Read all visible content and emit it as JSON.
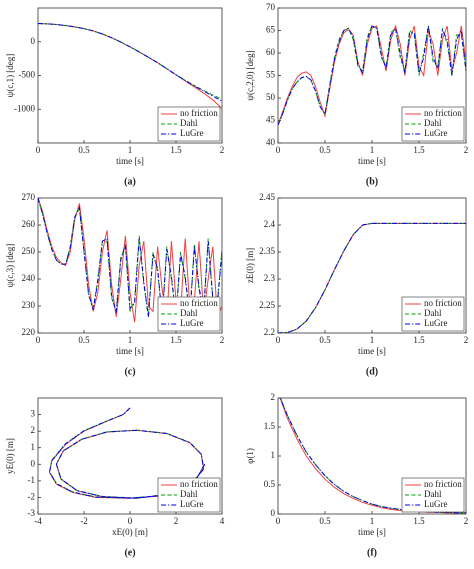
{
  "chart_data": [
    {
      "type": "line",
      "label": "(a)",
      "xlabel": "time [s]",
      "ylabel": "ψ(c,1) [deg]",
      "x": [
        0,
        0.1,
        0.2,
        0.3,
        0.4,
        0.5,
        0.6,
        0.7,
        0.8,
        0.9,
        1,
        1.1,
        1.2,
        1.3,
        1.4,
        1.5,
        1.6,
        1.7,
        1.8,
        1.9,
        2
      ],
      "xlim": [
        0,
        2
      ],
      "xticks": [
        0,
        0.5,
        1,
        1.5,
        2
      ],
      "ylim": [
        -1500,
        500
      ],
      "yticks": [
        -1000,
        -500,
        0
      ],
      "legend": "lower right",
      "series": [
        {
          "name": "no friction",
          "color": "#f04040",
          "dash": "solid",
          "values": [
            270,
            265,
            255,
            240,
            220,
            195,
            160,
            115,
            60,
            -5,
            -75,
            -150,
            -230,
            -310,
            -400,
            -490,
            -580,
            -670,
            -760,
            -860,
            -990
          ]
        },
        {
          "name": "Dahl",
          "color": "#00a000",
          "dash": "dashed",
          "values": [
            270,
            265,
            255,
            240,
            220,
            195,
            160,
            115,
            60,
            -5,
            -75,
            -150,
            -230,
            -310,
            -400,
            -490,
            -570,
            -650,
            -720,
            -790,
            -850
          ]
        },
        {
          "name": "LuGre",
          "color": "#0000ee",
          "dash": "dashdot",
          "values": [
            270,
            265,
            255,
            240,
            220,
            195,
            160,
            115,
            60,
            -5,
            -75,
            -150,
            -230,
            -310,
            -400,
            -490,
            -575,
            -655,
            -730,
            -805,
            -880
          ]
        }
      ]
    },
    {
      "type": "line",
      "label": "(b)",
      "xlabel": "time [s]",
      "ylabel": "ψ(c,2,0) [deg]",
      "x": [
        0,
        0.05,
        0.1,
        0.15,
        0.2,
        0.25,
        0.3,
        0.35,
        0.4,
        0.45,
        0.5,
        0.55,
        0.6,
        0.65,
        0.7,
        0.75,
        0.8,
        0.85,
        0.9,
        0.95,
        1,
        1.05,
        1.1,
        1.15,
        1.2,
        1.25,
        1.3,
        1.35,
        1.4,
        1.45,
        1.5,
        1.55,
        1.6,
        1.65,
        1.7,
        1.75,
        1.8,
        1.85,
        1.9,
        1.95,
        2
      ],
      "xlim": [
        0,
        2
      ],
      "xticks": [
        0,
        0.5,
        1,
        1.5,
        2
      ],
      "ylim": [
        40,
        70
      ],
      "yticks": [
        40,
        45,
        50,
        55,
        60,
        65,
        70
      ],
      "legend": "lower right",
      "series": [
        {
          "name": "no friction",
          "color": "#f04040",
          "dash": "solid",
          "values": [
            44,
            47,
            50,
            52.5,
            54.5,
            55.5,
            55.8,
            55,
            52.5,
            49,
            46,
            52,
            58,
            62,
            64.5,
            65.2,
            64,
            58,
            55,
            62,
            65.5,
            66,
            61,
            56,
            63,
            66,
            62,
            55,
            63,
            66,
            57,
            55,
            65,
            62,
            55,
            63,
            66,
            56,
            60,
            66,
            58
          ]
        },
        {
          "name": "Dahl",
          "color": "#00a000",
          "dash": "dashed",
          "values": [
            44,
            46.5,
            49.5,
            52,
            53.5,
            54.5,
            54.8,
            54,
            51.5,
            48,
            46.5,
            53,
            59,
            63,
            65,
            65.5,
            63,
            57,
            56,
            63.5,
            66,
            65.5,
            59,
            57,
            64.5,
            65.5,
            59,
            56,
            65,
            64,
            55,
            60,
            66,
            58,
            57,
            65.5,
            62,
            55,
            64,
            64,
            56
          ]
        },
        {
          "name": "LuGre",
          "color": "#0000ee",
          "dash": "dashdot",
          "values": [
            44,
            46.5,
            49.5,
            52,
            53.5,
            54.5,
            54.8,
            54,
            51.5,
            48,
            46.5,
            52.5,
            58.5,
            62.5,
            65,
            65.5,
            63.5,
            57.5,
            55.5,
            63,
            66,
            65.5,
            59.5,
            56.5,
            64,
            65.5,
            60,
            55.5,
            64.5,
            64.5,
            55.5,
            59,
            66,
            59,
            56.5,
            65,
            63,
            55,
            63,
            65,
            56
          ]
        }
      ]
    },
    {
      "type": "line",
      "label": "(c)",
      "xlabel": "time [s]",
      "ylabel": "ψ(c,3) [deg]",
      "x": [
        0,
        0.05,
        0.1,
        0.15,
        0.2,
        0.25,
        0.3,
        0.35,
        0.4,
        0.45,
        0.5,
        0.55,
        0.6,
        0.65,
        0.7,
        0.75,
        0.8,
        0.85,
        0.9,
        0.95,
        1,
        1.05,
        1.1,
        1.15,
        1.2,
        1.25,
        1.3,
        1.35,
        1.4,
        1.45,
        1.5,
        1.55,
        1.6,
        1.65,
        1.7,
        1.75,
        1.8,
        1.85,
        1.9,
        1.95,
        2
      ],
      "xlim": [
        0,
        2
      ],
      "xticks": [
        0,
        0.5,
        1,
        1.5,
        2
      ],
      "ylim": [
        220,
        270
      ],
      "yticks": [
        220,
        230,
        240,
        250,
        260,
        270
      ],
      "legend": "lower right",
      "series": [
        {
          "name": "no friction",
          "color": "#f04040",
          "dash": "solid",
          "values": [
            270,
            265,
            258,
            252,
            248,
            246,
            245,
            250,
            262,
            268,
            255,
            238,
            228,
            235,
            250,
            258,
            238,
            226,
            240,
            256,
            235,
            224,
            245,
            254,
            230,
            228,
            252,
            236,
            225,
            254,
            232,
            228,
            255,
            230,
            232,
            254,
            227,
            240,
            252,
            226,
            230
          ]
        },
        {
          "name": "Dahl",
          "color": "#00a000",
          "dash": "dashed",
          "values": [
            270,
            264,
            257,
            251,
            247,
            245.5,
            245.5,
            252,
            263,
            266,
            250,
            234,
            229,
            240,
            254,
            254,
            233,
            228,
            248,
            252,
            228,
            232,
            256,
            238,
            226,
            250,
            243,
            226,
            252,
            240,
            226,
            250,
            240,
            226,
            253,
            236,
            228,
            255,
            232,
            232,
            251
          ]
        },
        {
          "name": "LuGre",
          "color": "#0000ee",
          "dash": "dashdot",
          "values": [
            270,
            264,
            257,
            251,
            247,
            245.5,
            245.5,
            251.5,
            263,
            266.5,
            250.5,
            234.5,
            228.5,
            239,
            254,
            255,
            234,
            227.5,
            247,
            253,
            229,
            231,
            255,
            239,
            226,
            249,
            244,
            225.5,
            251,
            241,
            226.5,
            249,
            241,
            226,
            252,
            237,
            228,
            254,
            233,
            231,
            250
          ]
        }
      ]
    },
    {
      "type": "line",
      "label": "(d)",
      "xlabel": "time [s]",
      "ylabel": "zE(0) [m]",
      "x": [
        0,
        0.1,
        0.2,
        0.3,
        0.4,
        0.5,
        0.6,
        0.7,
        0.8,
        0.9,
        1,
        1.1,
        1.2,
        1.3,
        1.4,
        1.5,
        1.6,
        1.7,
        1.8,
        1.9,
        2
      ],
      "xlim": [
        0,
        2
      ],
      "xticks": [
        0,
        0.5,
        1,
        1.5,
        2
      ],
      "ylim": [
        2.2,
        2.45
      ],
      "yticks": [
        2.2,
        2.25,
        2.3,
        2.35,
        2.4,
        2.45
      ],
      "legend": "lower right",
      "series": [
        {
          "name": "no friction",
          "color": "#f04040",
          "dash": "solid",
          "values": [
            2.2,
            2.201,
            2.207,
            2.222,
            2.247,
            2.28,
            2.317,
            2.352,
            2.382,
            2.4,
            2.403,
            2.403,
            2.403,
            2.403,
            2.403,
            2.403,
            2.403,
            2.403,
            2.403,
            2.403,
            2.403
          ]
        },
        {
          "name": "Dahl",
          "color": "#00a000",
          "dash": "dashed",
          "values": [
            2.2,
            2.201,
            2.207,
            2.222,
            2.247,
            2.28,
            2.317,
            2.352,
            2.382,
            2.4,
            2.403,
            2.403,
            2.403,
            2.403,
            2.403,
            2.403,
            2.403,
            2.403,
            2.403,
            2.403,
            2.403
          ]
        },
        {
          "name": "LuGre",
          "color": "#0000ee",
          "dash": "dashdot",
          "values": [
            2.2,
            2.201,
            2.207,
            2.222,
            2.247,
            2.28,
            2.317,
            2.352,
            2.382,
            2.4,
            2.403,
            2.403,
            2.403,
            2.403,
            2.403,
            2.403,
            2.403,
            2.403,
            2.403,
            2.403,
            2.403
          ]
        }
      ]
    },
    {
      "type": "line",
      "label": "(e)",
      "xlabel": "xE(0) [m]",
      "ylabel": "yE(0) [m]",
      "x": [
        0,
        -0.3,
        -1,
        -2,
        -2.8,
        -3.4,
        -3.5,
        -3.2,
        -2.5,
        -1.5,
        0,
        1.5,
        2.6,
        3.2,
        3.1,
        2.6,
        1.6,
        0.3,
        -1,
        -2.1,
        -2.9,
        -3.2,
        -3,
        -2.3,
        -1.2,
        0.3,
        1.7,
        2.8,
        3.25
      ],
      "xlim": [
        -4,
        4
      ],
      "xticks": [
        -4,
        -2,
        0,
        2,
        4
      ],
      "ylim": [
        -3,
        4
      ],
      "yticks": [
        -3,
        -2,
        -1,
        0,
        1,
        2,
        3
      ],
      "legend": "lower right",
      "series": [
        {
          "name": "no friction",
          "color": "#f04040",
          "dash": "solid",
          "values": [
            3.4,
            3,
            2.6,
            2,
            1.2,
            0.2,
            -0.5,
            -1.2,
            -1.7,
            -2,
            -2.05,
            -1.9,
            -1.3,
            -0.3,
            0.6,
            1.3,
            1.85,
            2.05,
            1.95,
            1.5,
            0.8,
            0,
            -0.9,
            -1.6,
            -1.95,
            -2.05,
            -1.8,
            -1.1,
            0
          ]
        },
        {
          "name": "Dahl",
          "color": "#00a000",
          "dash": "dashed",
          "values": [
            3.4,
            3,
            2.62,
            2.03,
            1.25,
            0.25,
            -0.45,
            -1.15,
            -1.66,
            -1.97,
            -2.03,
            -1.88,
            -1.28,
            -0.28,
            0.62,
            1.32,
            1.87,
            2.06,
            1.96,
            1.52,
            0.82,
            0.02,
            -0.88,
            -1.58,
            -1.94,
            -2.04,
            -1.79,
            -1.09,
            0.02
          ]
        },
        {
          "name": "LuGre",
          "color": "#0000ee",
          "dash": "dashdot",
          "values": [
            3.4,
            3,
            2.61,
            2.02,
            1.23,
            0.23,
            -0.47,
            -1.17,
            -1.68,
            -1.98,
            -2.04,
            -1.89,
            -1.29,
            -0.29,
            0.61,
            1.31,
            1.86,
            2.05,
            1.95,
            1.51,
            0.81,
            0.01,
            -0.89,
            -1.59,
            -1.95,
            -2.05,
            -1.8,
            -1.1,
            0.01
          ]
        }
      ]
    },
    {
      "type": "line",
      "label": "(f)",
      "xlabel": "time [s]",
      "ylabel": "φ(1)",
      "x": [
        0,
        0.1,
        0.2,
        0.3,
        0.4,
        0.5,
        0.6,
        0.7,
        0.8,
        0.9,
        1,
        1.1,
        1.2,
        1.3,
        1.4,
        1.5,
        1.6,
        1.7,
        1.8,
        1.9,
        2
      ],
      "xlim": [
        0,
        2
      ],
      "xticks": [
        0,
        0.5,
        1,
        1.5,
        2
      ],
      "ylim": [
        0,
        2
      ],
      "yticks": [
        0,
        0.5,
        1,
        1.5,
        2
      ],
      "legend": "lower right",
      "series": [
        {
          "name": "no friction",
          "color": "#f04040",
          "dash": "solid",
          "values": [
            2.1,
            1.65,
            1.3,
            1,
            0.78,
            0.6,
            0.46,
            0.35,
            0.27,
            0.2,
            0.15,
            0.11,
            0.08,
            0.06,
            0.05,
            0.04,
            0.03,
            0.03,
            0.02,
            0.02,
            0.02
          ]
        },
        {
          "name": "Dahl",
          "color": "#00a000",
          "dash": "dashed",
          "values": [
            2.1,
            1.7,
            1.36,
            1.07,
            0.85,
            0.66,
            0.51,
            0.39,
            0.3,
            0.23,
            0.17,
            0.13,
            0.1,
            0.08,
            0.06,
            0.05,
            0.04,
            0.03,
            0.03,
            0.02,
            0.02
          ]
        },
        {
          "name": "LuGre",
          "color": "#0000ee",
          "dash": "dashdot",
          "values": [
            2.1,
            1.7,
            1.36,
            1.07,
            0.85,
            0.66,
            0.51,
            0.39,
            0.3,
            0.23,
            0.17,
            0.13,
            0.1,
            0.08,
            0.06,
            0.05,
            0.04,
            0.03,
            0.03,
            0.02,
            0.02
          ]
        }
      ]
    }
  ]
}
